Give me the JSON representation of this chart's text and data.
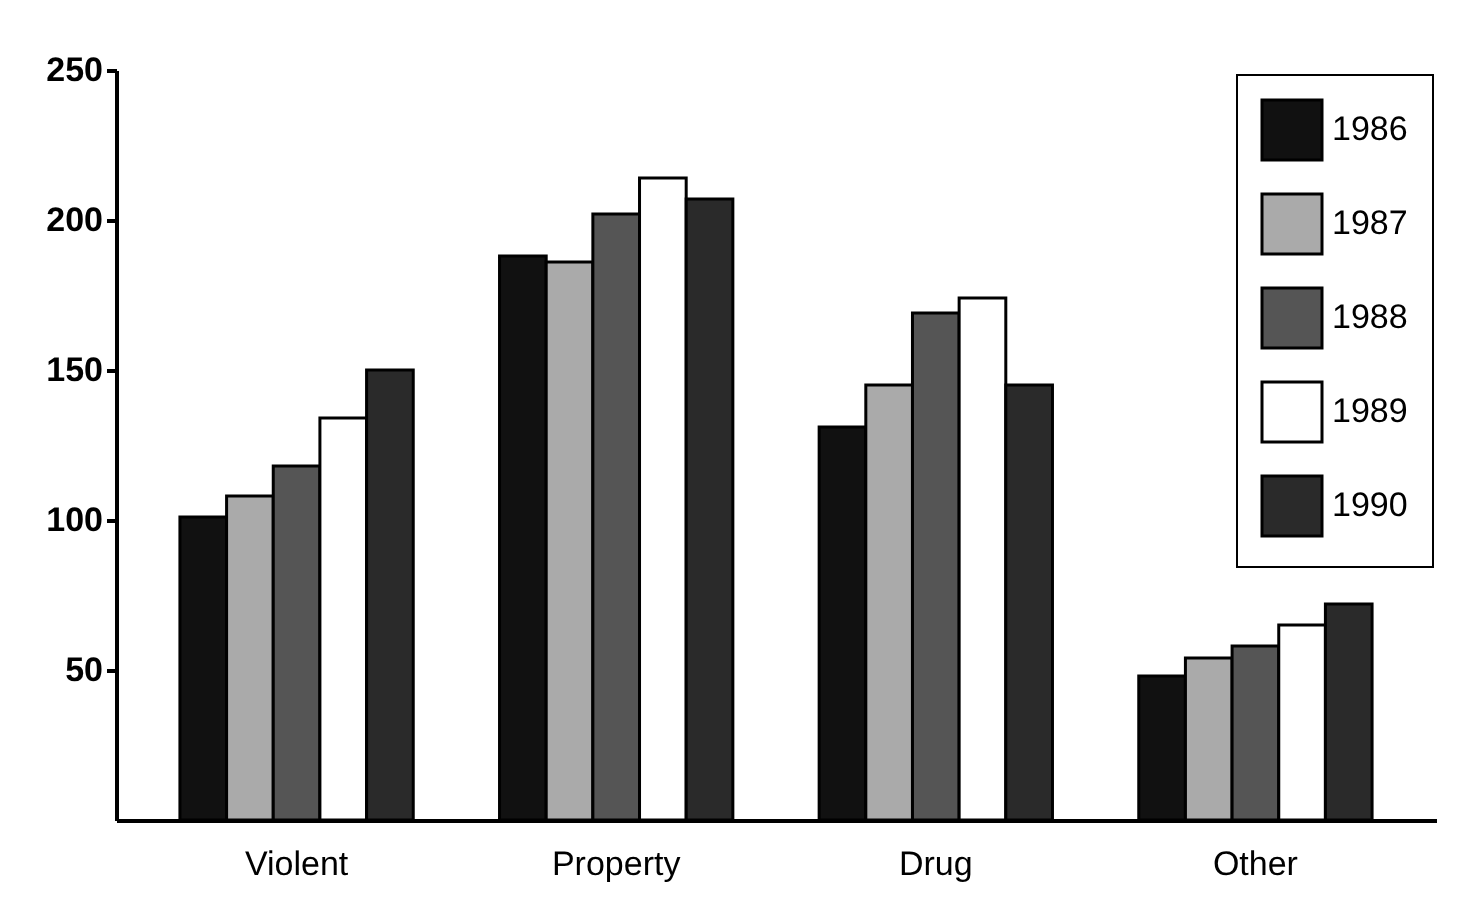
{
  "chart_data": {
    "type": "bar",
    "categories": [
      "Violent",
      "Property",
      "Drug",
      "Other"
    ],
    "series": [
      {
        "name": "1986",
        "color": "#111111",
        "values": [
          101,
          188,
          131,
          48
        ]
      },
      {
        "name": "1987",
        "color": "#aaaaaa",
        "values": [
          108,
          186,
          145,
          54
        ]
      },
      {
        "name": "1988",
        "color": "#555555",
        "values": [
          118,
          202,
          169,
          58
        ]
      },
      {
        "name": "1989",
        "color": "#ffffff",
        "values": [
          134,
          214,
          174,
          65
        ]
      },
      {
        "name": "1990",
        "color": "#2a2a2a",
        "values": [
          150,
          207,
          145,
          72
        ]
      }
    ],
    "ylim": [
      0,
      250
    ],
    "yticks": [
      50,
      100,
      150,
      200,
      250
    ],
    "grid": false,
    "legend": "top right"
  }
}
